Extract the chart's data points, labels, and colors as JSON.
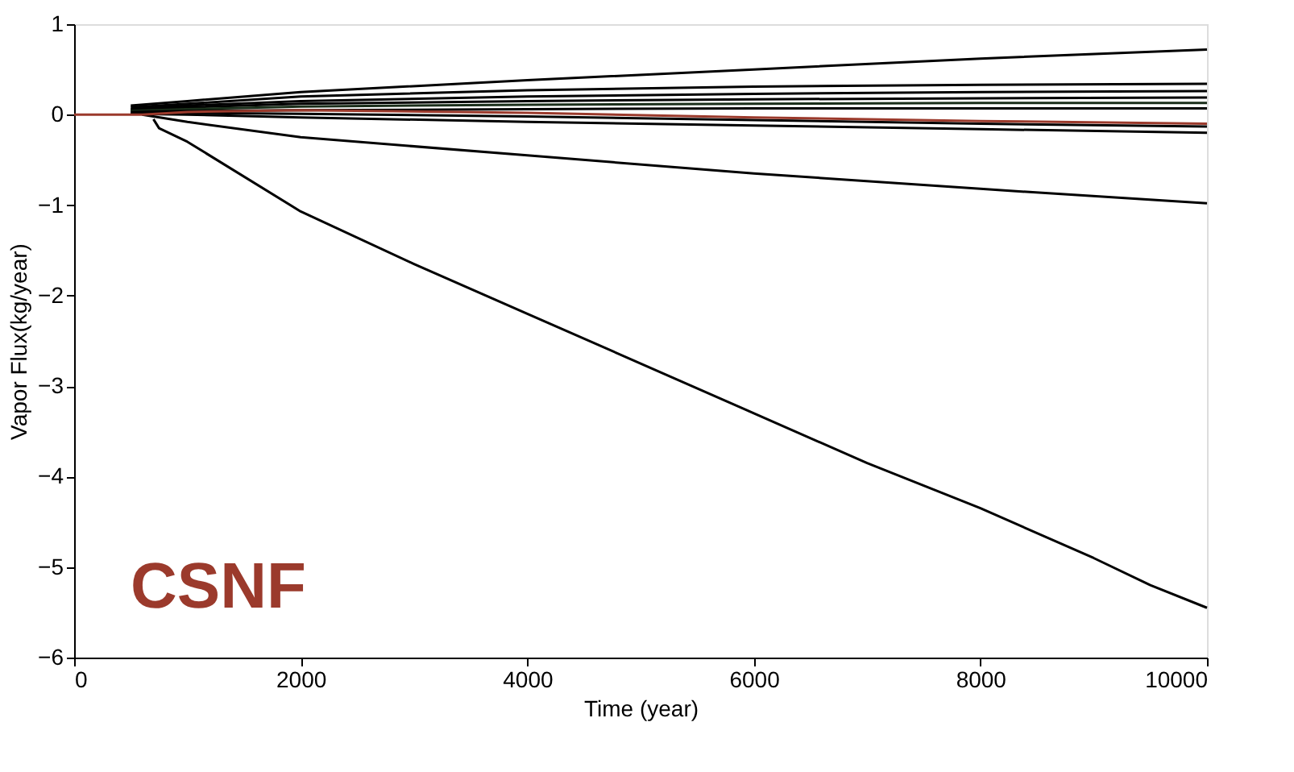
{
  "chart_data": {
    "type": "line",
    "xlabel": "Time (year)",
    "ylabel": "Vapor Flux(kg/year)",
    "xlim": [
      0,
      10000
    ],
    "ylim": [
      -6,
      1
    ],
    "xticks": [
      0,
      2000,
      4000,
      6000,
      8000,
      10000
    ],
    "yticks": [
      -6,
      -5,
      -4,
      -3,
      -2,
      -1,
      0,
      1
    ],
    "grid": false,
    "legend": false,
    "marker": "none",
    "line_style": "solid",
    "annotations": [
      "CSNF"
    ],
    "series": [
      {
        "color": "#000000",
        "x": [
          700,
          750,
          1000,
          2000,
          3000,
          4000,
          5000,
          6000,
          7000,
          8000,
          9000,
          9500,
          10000
        ],
        "values": [
          -0.05,
          -0.15,
          -0.3,
          -1.07,
          -1.65,
          -2.2,
          -2.75,
          -3.3,
          -3.85,
          -4.35,
          -4.9,
          -5.2,
          -5.45
        ]
      },
      {
        "color": "#000000",
        "x": [
          600,
          1000,
          2000,
          4000,
          6000,
          8000,
          10000
        ],
        "values": [
          0,
          -0.08,
          -0.25,
          -0.45,
          -0.65,
          -0.82,
          -0.98
        ]
      },
      {
        "color": "#000000",
        "x": [
          500,
          1000,
          2000,
          4000,
          6000,
          8000,
          10000
        ],
        "values": [
          0.1,
          0.15,
          0.25,
          0.38,
          0.5,
          0.62,
          0.72
        ]
      },
      {
        "color": "#000000",
        "x": [
          500,
          1000,
          2000,
          4000,
          6000,
          8000,
          10000
        ],
        "values": [
          0.08,
          0.12,
          0.2,
          0.27,
          0.31,
          0.33,
          0.34
        ]
      },
      {
        "color": "#000000",
        "x": [
          500,
          1000,
          2000,
          4000,
          6000,
          8000,
          10000
        ],
        "values": [
          0.06,
          0.1,
          0.15,
          0.2,
          0.23,
          0.25,
          0.26
        ]
      },
      {
        "color": "#000000",
        "x": [
          500,
          1000,
          2000,
          4000,
          6000,
          8000,
          10000
        ],
        "values": [
          0.05,
          0.08,
          0.12,
          0.15,
          0.17,
          0.18,
          0.19
        ]
      },
      {
        "color": "#1a2e1a",
        "x": [
          500,
          1000,
          2000,
          4000,
          6000,
          8000,
          10000
        ],
        "values": [
          0.04,
          0.06,
          0.09,
          0.11,
          0.12,
          0.13,
          0.13
        ]
      },
      {
        "color": "#000000",
        "x": [
          500,
          1000,
          2000,
          4000,
          6000,
          8000,
          10000
        ],
        "values": [
          0.03,
          0.04,
          0.05,
          0.06,
          0.07,
          0.07,
          0.07
        ]
      },
      {
        "color": "#000000",
        "x": [
          500,
          1000,
          2000,
          4000,
          6000,
          8000,
          10000
        ],
        "values": [
          0.02,
          0.02,
          0.01,
          -0.02,
          -0.06,
          -0.1,
          -0.13
        ]
      },
      {
        "color": "#000000",
        "x": [
          500,
          1000,
          2000,
          4000,
          6000,
          8000,
          10000
        ],
        "values": [
          0.01,
          0,
          -0.03,
          -0.08,
          -0.12,
          -0.16,
          -0.2
        ]
      },
      {
        "color": "#9b3a2c",
        "x": [
          0,
          600,
          1000,
          2000,
          4000,
          6000,
          8000,
          10000
        ],
        "values": [
          0,
          0,
          0.03,
          0.05,
          0.02,
          -0.03,
          -0.07,
          -0.1
        ]
      }
    ]
  }
}
